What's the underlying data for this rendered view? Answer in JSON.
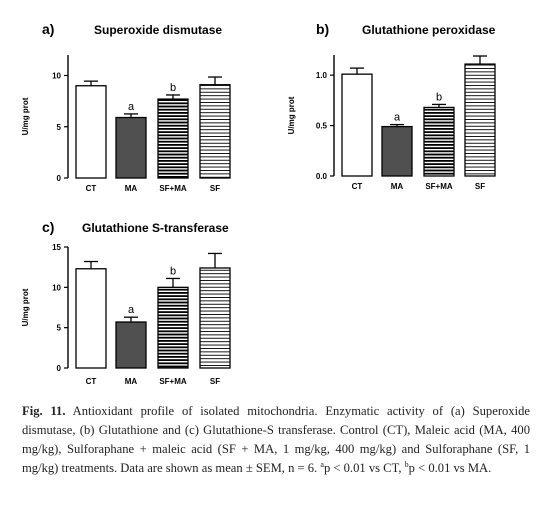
{
  "chart_data": [
    {
      "type": "bar",
      "panel": "a)",
      "title": "Superoxide dismutase",
      "ylabel": "U/mg prot",
      "categories": [
        "CT",
        "MA",
        "SF+MA",
        "SF"
      ],
      "values": [
        9.0,
        5.9,
        7.7,
        9.1
      ],
      "errors": [
        0.45,
        0.35,
        0.4,
        0.75
      ],
      "annotations": [
        "",
        "a",
        "b",
        ""
      ],
      "fills": [
        "white",
        "dark-gray",
        "horizontal-stripes-dense",
        "horizontal-stripes"
      ],
      "ylim": [
        0,
        12
      ],
      "yticks": [
        0,
        5,
        10
      ],
      "ytick_labels": [
        "0",
        "5",
        "10"
      ]
    },
    {
      "type": "bar",
      "panel": "b)",
      "title": "Glutathione peroxidase",
      "ylabel": "U/mg prot",
      "categories": [
        "CT",
        "MA",
        "SF+MA",
        "SF"
      ],
      "values": [
        1.01,
        0.49,
        0.68,
        1.11
      ],
      "errors": [
        0.06,
        0.02,
        0.03,
        0.08
      ],
      "annotations": [
        "",
        "a",
        "b",
        ""
      ],
      "fills": [
        "white",
        "dark-gray",
        "horizontal-stripes-dense",
        "horizontal-stripes"
      ],
      "ylim": [
        0,
        1.2
      ],
      "yticks": [
        0,
        0.5,
        1.0
      ],
      "ytick_labels": [
        "0.0",
        "0.5",
        "1.0"
      ]
    },
    {
      "type": "bar",
      "panel": "c)",
      "title": "Glutathione S-transferase",
      "ylabel": "U/mg prot",
      "categories": [
        "CT",
        "MA",
        "SF+MA",
        "SF"
      ],
      "values": [
        12.3,
        5.7,
        10.0,
        12.4
      ],
      "errors": [
        0.9,
        0.6,
        1.1,
        1.8
      ],
      "annotations": [
        "",
        "a",
        "b",
        ""
      ],
      "fills": [
        "white",
        "dark-gray",
        "horizontal-stripes-dense",
        "horizontal-stripes"
      ],
      "ylim": [
        0,
        15
      ],
      "yticks": [
        0,
        5,
        10,
        15
      ],
      "ytick_labels": [
        "0",
        "5",
        "10",
        "15"
      ]
    }
  ],
  "colors": {
    "bar_outline": "#000000",
    "dark_bar": "#505050",
    "stripe": "#000000"
  },
  "caption": {
    "label": "Fig. 11.",
    "text": " Antioxidant profile of isolated mitochondria. Enzymatic activity of (a) Superoxide dismutase, (b) Glutathione and (c) Glutathione-S transferase. Control (CT), Maleic acid (MA, 400 mg/kg), Sulforaphane + maleic acid (SF + MA, 1 mg/kg, 400 mg/kg) and Sulforaphane (SF, 1 mg/kg) treatments. Data are shown as mean ± SEM, n = 6.",
    "footnote_a_sup": "a",
    "footnote_a_text": "p < 0.01 vs CT, ",
    "footnote_b_sup": "b",
    "footnote_b_text": "p < 0.01 vs MA."
  }
}
